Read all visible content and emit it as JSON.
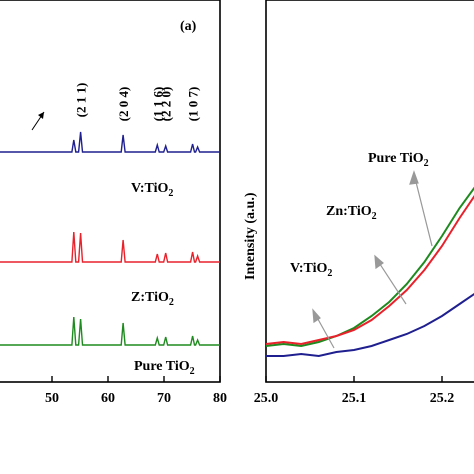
{
  "colors": {
    "v": "#1f1f8f",
    "z": "#e8212b",
    "pure": "#1f8a1f",
    "axis": "#000000",
    "arrow": "#999999"
  },
  "chart_data": [
    {
      "type": "line",
      "panel": "(a)",
      "xlim": [
        40,
        80
      ],
      "x_ticks": [
        "50",
        "60",
        "70",
        "80"
      ],
      "peak_labels": [
        "(2 1 1)",
        "(2 0 4)",
        "(1 1 6)",
        "(2 2 0)",
        "(1 0 7)"
      ],
      "peak_positions": [
        55.1,
        62.7,
        68.8,
        70.3,
        75.1
      ],
      "series": [
        {
          "name": "V:TiO",
          "name_sub": "2",
          "color_key": "v",
          "x": [
            40,
            53.9,
            55.1,
            62.7,
            68.8,
            70.3,
            75.1,
            76.0,
            80
          ],
          "peaks": [
            0,
            12,
            20,
            17,
            7,
            6,
            8,
            5,
            0
          ]
        },
        {
          "name": "Z:TiO",
          "name_sub": "2",
          "color_key": "z",
          "x": [
            40,
            53.9,
            55.1,
            62.7,
            68.8,
            70.3,
            75.1,
            76.0,
            80
          ],
          "peaks": [
            0,
            30,
            29,
            22,
            8,
            9,
            10,
            6,
            0
          ]
        },
        {
          "name": "Pure TiO",
          "name_sub": "2",
          "color_key": "pure",
          "x": [
            40,
            53.9,
            55.1,
            62.7,
            68.8,
            70.3,
            75.1,
            76.0,
            80
          ],
          "peaks": [
            0,
            28,
            26,
            22,
            7,
            8,
            9,
            5,
            0
          ]
        }
      ]
    },
    {
      "type": "line",
      "ylabel": "Intensity (a.u.)",
      "xlim": [
        25.0,
        25.25
      ],
      "x_ticks": [
        "25.0",
        "25.1",
        "25.2"
      ],
      "series": [
        {
          "name": "Pure TiO",
          "name_sub": "2",
          "color_key": "pure",
          "x": [
            25.0,
            25.02,
            25.04,
            25.06,
            25.08,
            25.1,
            25.12,
            25.14,
            25.16,
            25.18,
            25.2,
            25.22,
            25.24,
            25.25
          ],
          "y": [
            0.05,
            0.06,
            0.05,
            0.07,
            0.1,
            0.14,
            0.2,
            0.27,
            0.36,
            0.47,
            0.6,
            0.74,
            0.86,
            0.9
          ]
        },
        {
          "name": "Zn:TiO",
          "name_sub": "2",
          "color_key": "z",
          "x": [
            25.0,
            25.02,
            25.04,
            25.06,
            25.08,
            25.1,
            25.12,
            25.14,
            25.16,
            25.18,
            25.2,
            25.22,
            25.24,
            25.25
          ],
          "y": [
            0.06,
            0.07,
            0.06,
            0.08,
            0.1,
            0.13,
            0.18,
            0.25,
            0.33,
            0.43,
            0.55,
            0.69,
            0.82,
            0.86
          ]
        },
        {
          "name": "V:TiO",
          "name_sub": "2",
          "color_key": "v",
          "x": [
            25.0,
            25.02,
            25.04,
            25.06,
            25.08,
            25.1,
            25.12,
            25.14,
            25.16,
            25.18,
            25.2,
            25.22,
            25.24,
            25.25
          ],
          "y": [
            0.0,
            0.0,
            0.01,
            0.0,
            0.02,
            0.03,
            0.05,
            0.08,
            0.11,
            0.15,
            0.2,
            0.26,
            0.32,
            0.34
          ]
        }
      ]
    }
  ]
}
